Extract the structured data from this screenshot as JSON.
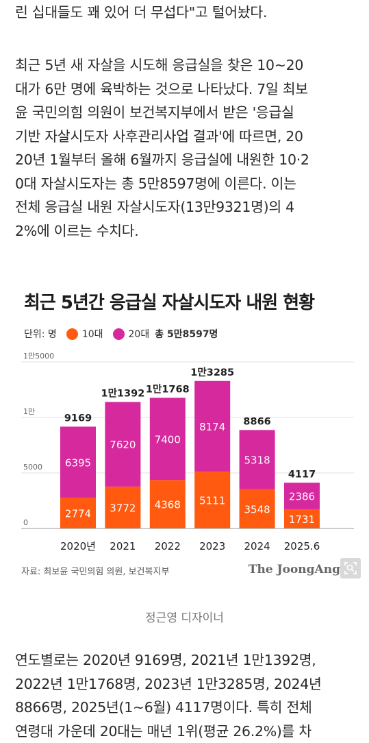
{
  "article": {
    "intro_lines": [
      "린 십대들도 꽤 있어 더 무섭다\"고 털어놨다."
    ],
    "body_lines": [
      "최근 5년 새 자살을 시도해 응급실을 찾은 10~20",
      "대가 6만 명에 육박하는 것으로 나타났다. 7일 최보",
      "윤 국민의힘 의원이 보건복지부에서 받은 '응급실",
      "기반 자살시도자 사후관리사업 결과'에 따르면, 20",
      "20년 1월부터 올해 6월까지 응급실에 내원한 10·2",
      "0대 자살시도자는 총 5만8597명에 이른다. 이는",
      "전체 응급실 내원 자살시도자(13만9321명)의 4",
      "2%에 이르는 수치다."
    ],
    "outro_lines": [
      "연도별로는 2020년 9169명, 2021년 1만1392명,",
      "2022년 1만1768명, 2023년 1만3285명, 2024년",
      "8866명, 2025년(1~6월) 4117명이다. 특히 전체",
      "연령대 가운데 20대는 매년 1위(평균 26.2%)를 차"
    ]
  },
  "figure": {
    "caption": "정근영 디자이너",
    "source": "자료: 최보윤 국민의힘 의원, 보건복지부",
    "logo_text": "The JoongAng",
    "zoom_icon": "zoom-icon"
  },
  "chart_data": {
    "type": "bar",
    "stacked": true,
    "title": "최근 5년간 응급실 자살시도자 내원 현황",
    "unit_label": "단위: 명",
    "total_label": "총 5만8597명",
    "categories": [
      "2020년",
      "2021",
      "2022",
      "2023",
      "2024",
      "2025.6"
    ],
    "series": [
      {
        "name": "10대",
        "color": "#ff5a0f",
        "values": [
          2774,
          3772,
          4368,
          5111,
          3548,
          1731
        ]
      },
      {
        "name": "20대",
        "color": "#d6299e",
        "values": [
          6395,
          7620,
          7400,
          8174,
          5318,
          2386
        ]
      }
    ],
    "totals": [
      9169,
      11392,
      11768,
      13285,
      8866,
      4117
    ],
    "total_labels": [
      "9169",
      "1만1392",
      "1만1768",
      "1만3285",
      "8866",
      "4117"
    ],
    "y_ticks": [
      0,
      5000,
      10000,
      15000
    ],
    "y_tick_labels": [
      "0",
      "5000",
      "1만",
      "1만5000"
    ],
    "ylim": [
      0,
      15000
    ],
    "grid": true,
    "legend_position": "top-left"
  }
}
